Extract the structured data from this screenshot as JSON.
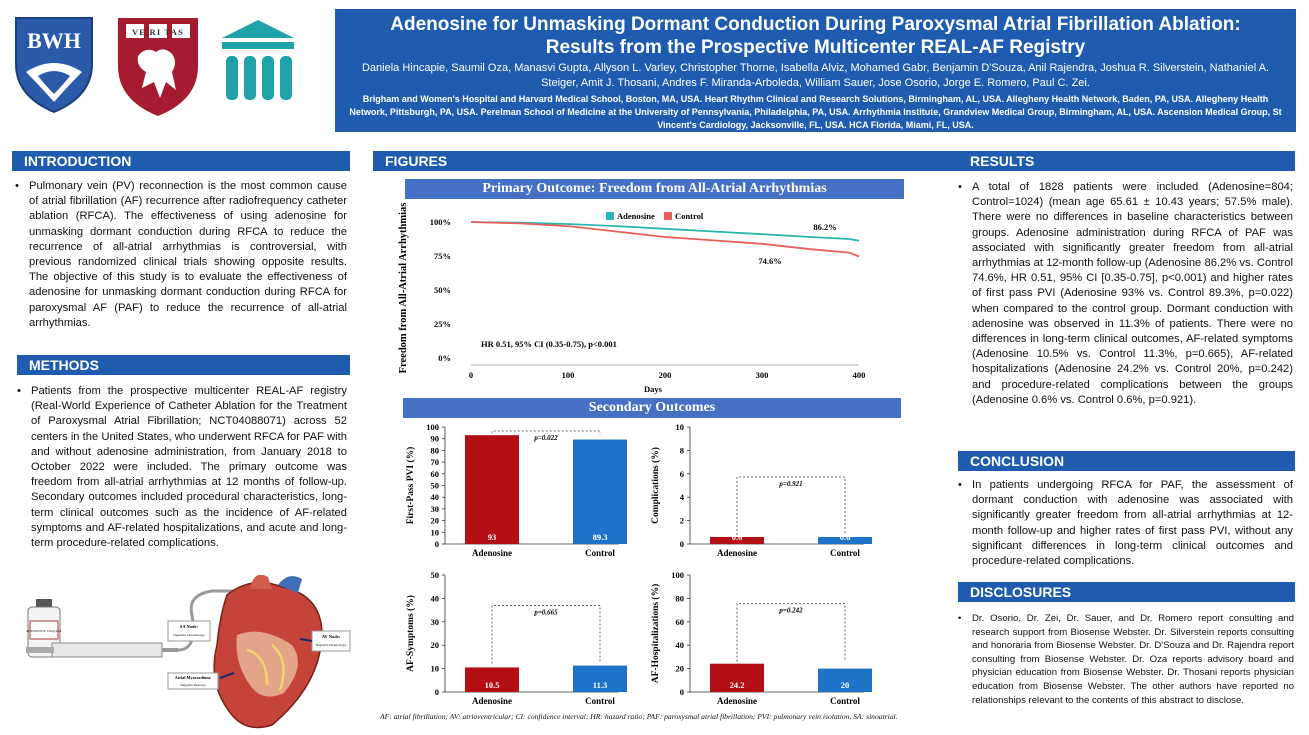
{
  "header": {
    "title_line1": "Adenosine for Unmasking Dormant Conduction During Paroxysmal Atrial Fibrillation Ablation:",
    "title_line2": "Results from the Prospective Multicenter REAL-AF Registry",
    "authors": "Daniela Hincapie, Saumil Oza, Manasvi Gupta, Allyson L. Varley, Christopher Thorne, Isabella Alviz, Mohamed Gabr, Benjamin D'Souza, Anil Rajendra, Joshua R. Silverstein, Nathaniel A. Steiger, Amit J. Thosani, Andres F. Miranda-Arboleda, William Sauer, Jose Osorio, Jorge E. Romero, Paul C. Zei.",
    "affiliations": "Brigham and Women's Hospital and Harvard Medical School, Boston, MA, USA. Heart Rhythm Clinical and Research Solutions, Birmingham, AL, USA. Allegheny Health Network, Baden, PA, USA. Allegheny Health Network, Pittsburgh, PA, USA. Perelman School of Medicine at the University of Pennsylvania, Philadelphia, PA, USA. Arrhythmia Institute, Grandview Medical Group, Birmingham, AL, USA. Ascension Medical Group, St Vincent's Cardiology, Jacksonville, FL, USA. HCA Florida, Miami, FL, USA."
  },
  "logos": {
    "bwh": "BWH",
    "harvard_shield": "VE RI TAS"
  },
  "introduction": {
    "heading": "INTRODUCTION",
    "text": "Pulmonary vein (PV) reconnection is the most common cause of atrial fibrillation (AF) recurrence after radiofrequency catheter ablation (RFCA). The effectiveness of using adenosine for unmasking dormant conduction during RFCA to reduce the recurrence of all-atrial arrhythmias is controversial, with previous randomized clinical trials showing opposite results. The objective of this study is to evaluate the effectiveness of adenosine for unmasking dormant conduction during RFCA for paroxysmal AF (PAF) to reduce the recurrence of all-atrial arrhythmias."
  },
  "methods": {
    "heading": "METHODS",
    "text": "Patients from the prospective multicenter REAL-AF registry (Real-World Experience of Catheter Ablation for the Treatment of Paroxysmal Atrial Fibrillation; NCT04088071) across 52 centers in the United States, who underwent RFCA for PAF with and without adenosine administration, from January 2018 to October 2022 were included. The primary outcome was freedom from all-atrial arrhythmias at 12 months of follow-up. Secondary outcomes included procedural characteristics, long-term clinical outcomes such as the incidence of AF-related symptoms and AF-related hospitalizations, and acute and long-term procedure-related complications."
  },
  "illustration": {
    "vial_label": "ADENOSINE 12mg/4mL",
    "sa_node_title": "SA Node:",
    "sa_node_sub": "Negative Chronotropy",
    "av_node_title": "AV Node:",
    "av_node_sub": "Negative Dromotropy",
    "atrial_title": "Atrial Myocardium:",
    "atrial_sub": "Negative Inotropy"
  },
  "figures": {
    "heading": "FIGURES",
    "primary_title": "Primary Outcome: Freedom from All-Atrial Arrhythmias",
    "secondary_title": "Secondary Outcomes",
    "footnote": "AF: atrial fibrillation; AV: atrioventricular; CI: confidence interval; HR: hazard ratio; PAF: paroxysmal atrial fibrillation; PVI: pulmonary vein isolation, SA: sinoatrial."
  },
  "colors": {
    "adenosine_curve": "#2bb5b0",
    "control_curve": "#e8605a",
    "adenosine_bar": "#b30f14",
    "control_bar": "#1e73c8",
    "banner_blue": "#1f5cb0",
    "figure_banner": "#4670c4"
  },
  "chart_data": [
    {
      "type": "line",
      "title": "Primary Outcome: Freedom from All-Atrial Arrhythmias",
      "xlabel": "Days",
      "ylabel": "Freedom from All-Atrial Arrhythmias",
      "xlim": [
        0,
        400
      ],
      "ylim": [
        0,
        100
      ],
      "x_ticks": [
        "0",
        "100",
        "200",
        "300",
        "400"
      ],
      "y_ticks": [
        "0%",
        "25%",
        "50%",
        "75%",
        "100%"
      ],
      "legend_position": "top",
      "annotation": "HR 0.51, 95% CI (0.35-0.75), p<0.001",
      "series": [
        {
          "name": "Adenosine",
          "end_label": "86.2%",
          "x": [
            0,
            50,
            100,
            150,
            200,
            250,
            300,
            350,
            390,
            400
          ],
          "y": [
            100,
            99.5,
            98.5,
            97,
            95,
            93,
            91,
            89,
            87.5,
            86.2
          ]
        },
        {
          "name": "Control",
          "end_label": "74.6%",
          "x": [
            0,
            50,
            100,
            150,
            200,
            250,
            300,
            350,
            390,
            400
          ],
          "y": [
            100,
            99,
            97,
            93,
            89,
            86.5,
            84,
            80,
            77.5,
            74.6
          ]
        }
      ]
    },
    {
      "type": "bar",
      "ylabel": "First-Pass PVI (%)",
      "ylim": [
        0,
        100
      ],
      "y_ticks": [
        "0",
        "10",
        "20",
        "30",
        "40",
        "50",
        "60",
        "70",
        "80",
        "90",
        "100"
      ],
      "categories": [
        "Adenosine",
        "Control"
      ],
      "values": [
        93,
        89.3
      ],
      "value_labels": [
        "93",
        "89.3"
      ],
      "p_value": "p=0.022"
    },
    {
      "type": "bar",
      "ylabel": "Complications (%)",
      "ylim": [
        0,
        10
      ],
      "y_ticks": [
        "0",
        "2",
        "4",
        "6",
        "8",
        "10"
      ],
      "categories": [
        "Adenosine",
        "Control"
      ],
      "values": [
        0.6,
        0.6
      ],
      "value_labels": [
        "0.6",
        "0.6"
      ],
      "p_value": "p=0.921"
    },
    {
      "type": "bar",
      "ylabel": "AF-Symptoms (%)",
      "ylim": [
        0,
        50
      ],
      "y_ticks": [
        "0",
        "10",
        "20",
        "30",
        "40",
        "50"
      ],
      "categories": [
        "Adenosine",
        "Control"
      ],
      "values": [
        10.5,
        11.3
      ],
      "value_labels": [
        "10.5",
        "11.3"
      ],
      "p_value": "p=0.665"
    },
    {
      "type": "bar",
      "ylabel": "AF-Hospitalizations (%)",
      "ylim": [
        0,
        100
      ],
      "y_ticks": [
        "0",
        "20",
        "40",
        "60",
        "80",
        "100"
      ],
      "categories": [
        "Adenosine",
        "Control"
      ],
      "values": [
        24.2,
        20
      ],
      "value_labels": [
        "24.2",
        "20"
      ],
      "p_value": "p=0.242"
    }
  ],
  "results": {
    "heading": "RESULTS",
    "text": "A total of 1828 patients were included (Adenosine=804; Control=1024) (mean age 65.61 ± 10.43 years; 57.5% male). There were no differences in baseline characteristics between groups. Adenosine administration during RFCA of PAF was associated with significantly greater freedom from all-atrial arrhythmias at 12-month follow-up (Adenosine 86.2% vs. Control 74.6%, HR 0.51, 95% CI [0.35-0.75], p<0.001) and higher rates of first pass PVI (Adenosine 93% vs. Control 89.3%, p=0.022) when compared to the control group. Dormant conduction with adenosine was observed in 11.3% of patients. There were no differences in long-term clinical outcomes, AF-related symptoms (Adenosine 10.5% vs. Control 11.3%, p=0.665), AF-related hospitalizations (Adenosine 24.2% vs. Control 20%, p=0.242) and procedure-related complications between the groups (Adenosine 0.6% vs. Control 0.6%, p=0.921)."
  },
  "conclusion": {
    "heading": "CONCLUSION",
    "text": "In patients undergoing RFCA for PAF, the assessment of dormant conduction with adenosine was associated with significantly greater freedom from all-atrial arrhythmias at 12-month follow-up and higher rates of first pass PVI, without any significant differences in long-term clinical outcomes and procedure-related complications."
  },
  "disclosures": {
    "heading": "DISCLOSURES",
    "text": "Dr. Osorio, Dr. Zei, Dr. Sauer, and Dr. Romero report consulting and research support from Biosense Webster. Dr. Silverstein reports consulting and honoraria from Biosense Webster. Dr. D'Souza and Dr. Rajendra report consulting from Biosense Webster. Dr. Oza reports advisory board and physician education from Biosense Webster. Dr. Thosani reports physician education from Biosense Webster. The other authors have reported no relationships relevant to the contents of this abstract to disclose."
  }
}
